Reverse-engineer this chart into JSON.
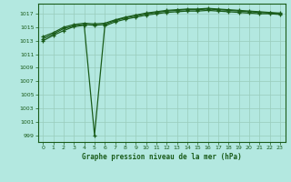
{
  "title": "Graphe pression niveau de la mer (hPa)",
  "bg_color": "#b3e8e0",
  "grid_color": "#99ccbb",
  "line_color": "#1a5c1a",
  "xlim": [
    -0.5,
    23.5
  ],
  "ylim": [
    998,
    1018.5
  ],
  "yticks": [
    999,
    1001,
    1003,
    1005,
    1007,
    1009,
    1011,
    1013,
    1015,
    1017
  ],
  "xticks": [
    0,
    1,
    2,
    3,
    4,
    5,
    6,
    7,
    8,
    9,
    10,
    11,
    12,
    13,
    14,
    15,
    16,
    17,
    18,
    19,
    20,
    21,
    22,
    23
  ],
  "series": [
    [
      1013.0,
      1013.8,
      1014.5,
      1015.1,
      1015.3,
      999.0,
      1015.2,
      1015.8,
      1016.2,
      1016.5,
      1016.8,
      1017.0,
      1017.2,
      1017.3,
      1017.4,
      1017.4,
      1017.5,
      1017.4,
      1017.3,
      1017.2,
      1017.1,
      1017.0,
      1017.0,
      1016.9
    ],
    [
      1013.3,
      1014.0,
      1014.8,
      1015.2,
      1015.4,
      1015.3,
      1015.4,
      1016.0,
      1016.4,
      1016.7,
      1017.0,
      1017.2,
      1017.4,
      1017.5,
      1017.6,
      1017.6,
      1017.7,
      1017.6,
      1017.5,
      1017.4,
      1017.3,
      1017.2,
      1017.1,
      1017.0
    ],
    [
      1013.6,
      1014.2,
      1015.0,
      1015.4,
      1015.6,
      1015.5,
      1015.6,
      1016.1,
      1016.5,
      1016.8,
      1017.1,
      1017.3,
      1017.5,
      1017.6,
      1017.7,
      1017.7,
      1017.8,
      1017.7,
      1017.6,
      1017.5,
      1017.4,
      1017.3,
      1017.2,
      1017.1
    ]
  ]
}
